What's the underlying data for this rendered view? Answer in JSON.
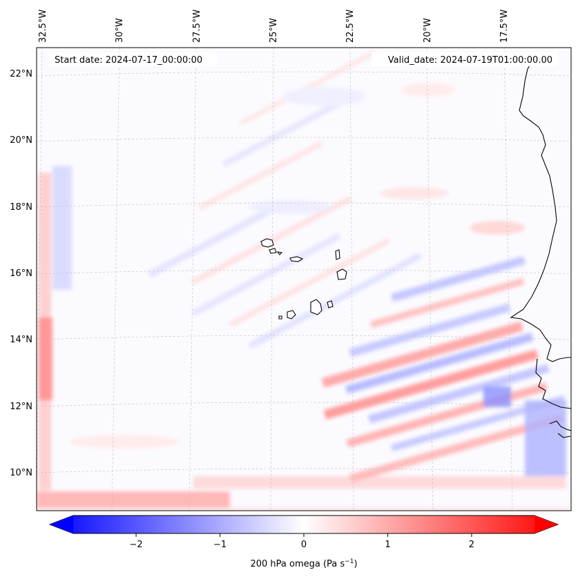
{
  "map": {
    "start_date_text": "Start date: 2024-07-17_00:00:00",
    "valid_date_text": "Valid_date: 2024-07-19T01:00:00.00",
    "lon_labels": [
      "32.5°W",
      "30°W",
      "27.5°W",
      "25°W",
      "22.5°W",
      "20°W",
      "17.5°W"
    ],
    "lat_labels": [
      "22°N",
      "20°N",
      "18°N",
      "16°N",
      "14°N",
      "12°N",
      "10°N"
    ],
    "colorbar": {
      "label_main": "200 hPa omega (Pa s",
      "label_exp": "−1",
      "label_close": ")",
      "ticks": [
        "−2",
        "−1",
        "0",
        "1",
        "2"
      ],
      "min": -2.75,
      "max": 2.75,
      "low_color": "#0000ff",
      "mid_color": "#ffffff",
      "high_color": "#ff0000"
    }
  }
}
